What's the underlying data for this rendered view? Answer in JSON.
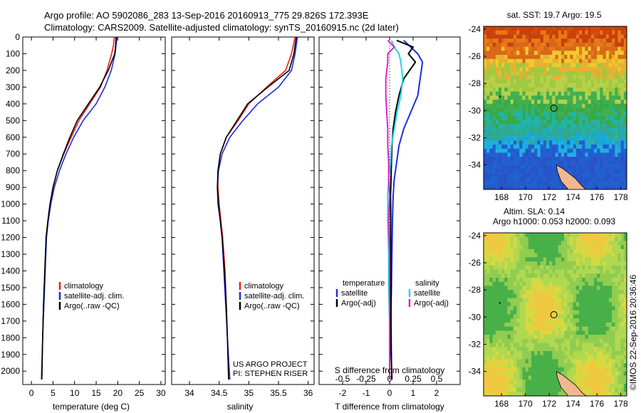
{
  "header": {
    "line1": "Argo profile: AO 5902086_283 13-Sep-2016 20160913_775 29.826S 172.393E",
    "line2": "Climatology: CARS2009. Satellite-adjusted climatology: synTS_20160915.nc (2d later)"
  },
  "colors": {
    "climatology": "#e8221a",
    "satellite": "#1a2ee0",
    "argo": "#000000",
    "salinity_satellite": "#22d8e0",
    "salinity_argo": "#e020d0",
    "island": "#f0b890"
  },
  "credit": {
    "line1": "US ARGO PROJECT",
    "line2": "PI: STEPHEN RISER"
  },
  "timestamp": "©IMOS 22-Sep-2016 20:36:46",
  "chart_data": [
    {
      "type": "line",
      "panel": "temperature",
      "xlabel": "temperature (deg C)",
      "ylabel": "",
      "xlim": [
        -2,
        31
      ],
      "ylim": [
        2080,
        0
      ],
      "xticks": [
        0,
        5,
        10,
        15,
        20,
        25,
        30
      ],
      "yticks": [
        0,
        100,
        200,
        300,
        400,
        500,
        600,
        700,
        800,
        900,
        1000,
        1100,
        1200,
        1300,
        1400,
        1500,
        1600,
        1700,
        1800,
        1900,
        2000
      ],
      "legend": [
        "climatology",
        "satellite-adj. clim.",
        "Argo(..raw -QC)"
      ],
      "legend_placement": "lower-right",
      "series": [
        {
          "name": "climatology",
          "color": "#e8221a",
          "x": [
            19.2,
            19.0,
            18.6,
            17.5,
            16.0,
            13.5,
            11.0,
            9.2,
            7.5,
            6.0,
            5.0,
            4.3,
            3.8,
            3.4,
            3.1,
            2.8,
            2.6,
            2.3
          ],
          "y": [
            0,
            50,
            100,
            200,
            300,
            400,
            500,
            600,
            700,
            800,
            900,
            1000,
            1100,
            1200,
            1400,
            1600,
            1800,
            2050
          ]
        },
        {
          "name": "satellite-adj. clim.",
          "color": "#1a2ee0",
          "x": [
            19.8,
            19.6,
            19.4,
            18.5,
            17.0,
            15.0,
            12.0,
            9.8,
            8.0,
            6.5,
            5.3,
            4.5,
            3.9,
            3.5,
            3.2,
            2.9,
            2.6,
            2.4
          ],
          "y": [
            0,
            50,
            100,
            200,
            300,
            400,
            500,
            600,
            700,
            800,
            900,
            1000,
            1100,
            1200,
            1400,
            1600,
            1800,
            2050
          ]
        },
        {
          "name": "Argo(..raw -QC)",
          "color": "#000000",
          "x": [
            19.6,
            19.5,
            19.3,
            17.8,
            15.8,
            13.2,
            10.6,
            8.9,
            7.4,
            6.0,
            5.0,
            4.3,
            3.8,
            3.4,
            3.1,
            2.8,
            2.6,
            2.4
          ],
          "y": [
            0,
            50,
            100,
            200,
            300,
            400,
            500,
            600,
            700,
            800,
            900,
            1000,
            1100,
            1200,
            1400,
            1600,
            1800,
            2050
          ]
        }
      ]
    },
    {
      "type": "line",
      "panel": "salinity",
      "xlabel": "salinity",
      "xlim": [
        33.7,
        36.1
      ],
      "ylim": [
        2080,
        0
      ],
      "xticks": [
        34,
        34.5,
        35,
        35.5,
        36
      ],
      "xticklabels": [
        "34",
        "34.5",
        "35",
        "35.5",
        "36"
      ],
      "legend": [
        "climatology",
        "satellite-adj. clim.",
        "Argo(..raw -QC)"
      ],
      "legend_placement": "lower-right",
      "series": [
        {
          "name": "climatology",
          "color": "#e8221a",
          "x": [
            35.78,
            35.75,
            35.72,
            35.62,
            35.3,
            35.0,
            34.82,
            34.62,
            34.52,
            34.48,
            34.48,
            34.5,
            34.53,
            34.56,
            34.6,
            34.62,
            34.64,
            34.66
          ],
          "y": [
            0,
            50,
            100,
            200,
            300,
            400,
            500,
            600,
            700,
            800,
            900,
            1000,
            1100,
            1200,
            1400,
            1600,
            1800,
            2050
          ]
        },
        {
          "name": "satellite-adj. clim.",
          "color": "#1a2ee0",
          "x": [
            35.82,
            35.8,
            35.78,
            35.72,
            35.5,
            35.15,
            34.9,
            34.68,
            34.55,
            34.49,
            34.47,
            34.48,
            34.52,
            34.55,
            34.58,
            34.61,
            34.64,
            34.68
          ],
          "y": [
            0,
            50,
            100,
            200,
            300,
            400,
            500,
            600,
            700,
            800,
            900,
            1000,
            1100,
            1200,
            1400,
            1600,
            1800,
            2050
          ]
        },
        {
          "name": "Argo(..raw -QC)",
          "color": "#000000",
          "x": [
            35.8,
            35.78,
            35.76,
            35.68,
            35.32,
            34.98,
            34.8,
            34.62,
            34.52,
            34.48,
            34.47,
            34.49,
            34.52,
            34.55,
            34.59,
            34.62,
            34.64,
            34.66
          ],
          "y": [
            0,
            50,
            100,
            200,
            300,
            400,
            500,
            600,
            700,
            800,
            900,
            1000,
            1100,
            1200,
            1400,
            1600,
            1800,
            2050
          ]
        }
      ]
    },
    {
      "type": "line",
      "panel": "difference",
      "xlabel": "T difference from climatology",
      "top_axis_label": "S difference from climatology",
      "xlim": [
        -3,
        3
      ],
      "s_xlim": [
        -0.75,
        0.75
      ],
      "ylim": [
        2080,
        0
      ],
      "xticks": [
        -2,
        -1,
        0,
        1,
        2
      ],
      "s_xticks": [
        -0.5,
        -0.25,
        0,
        0.25,
        0.5
      ],
      "s_xticklabels": [
        "-0.5",
        "-0.25",
        "0",
        "0.25",
        "0.5"
      ],
      "legend_temperature": {
        "title": "temperature",
        "items": [
          "satellite",
          "Argo(-adj)"
        ]
      },
      "legend_salinity": {
        "title": "salinity",
        "items": [
          "satellite",
          "Argo(-adj)"
        ]
      },
      "series": [
        {
          "name": "T satellite",
          "color": "#1a2ee0",
          "x": [
            0.6,
            0.9,
            1.2,
            1.4,
            1.3,
            1.2,
            0.9,
            0.6,
            0.4,
            0.3,
            0.2,
            0.15,
            0.12,
            0.1,
            0.08,
            0.05,
            0.03,
            0.0,
            0.0
          ],
          "y": [
            20,
            60,
            100,
            150,
            250,
            350,
            450,
            550,
            650,
            750,
            850,
            950,
            1100,
            1300,
            1500,
            1700,
            1850,
            1950,
            2050
          ]
        },
        {
          "name": "T Argo(-adj)",
          "color": "#000000",
          "x": [
            0.3,
            1.0,
            0.8,
            1.1,
            0.6,
            0.4,
            0.25,
            0.15,
            0.1,
            0.08,
            0.06,
            0.04,
            0.05,
            0.05,
            0.06,
            0.06,
            0.07,
            0.08,
            0.1
          ],
          "y": [
            20,
            60,
            100,
            150,
            250,
            350,
            450,
            550,
            650,
            750,
            850,
            950,
            1100,
            1300,
            1500,
            1700,
            1850,
            1950,
            2050
          ]
        },
        {
          "name": "S satellite",
          "color": "#22d8e0",
          "x": [
            0.02,
            0.05,
            0.1,
            0.12,
            0.14,
            0.12,
            0.08,
            0.05,
            0.02,
            0.01,
            -0.01,
            -0.02,
            -0.02,
            -0.01,
            -0.01,
            0.0,
            0.0,
            0.0,
            0.0
          ],
          "y": [
            20,
            60,
            100,
            150,
            250,
            350,
            450,
            550,
            650,
            750,
            850,
            950,
            1100,
            1300,
            1500,
            1700,
            1850,
            1950,
            2050
          ]
        },
        {
          "name": "S Argo(-adj)",
          "color": "#e020d0",
          "x": [
            -0.02,
            0.05,
            -0.02,
            -0.02,
            -0.04,
            -0.04,
            -0.03,
            -0.02,
            -0.02,
            -0.01,
            -0.01,
            0.0,
            -0.01,
            0.0,
            0.0,
            0.0,
            0.0,
            0.0,
            0.0
          ],
          "y": [
            20,
            60,
            100,
            150,
            250,
            350,
            450,
            550,
            650,
            750,
            850,
            950,
            1100,
            1300,
            1500,
            1700,
            1850,
            1950,
            2050
          ]
        }
      ]
    },
    {
      "type": "heatmap",
      "panel": "sst_map",
      "title": "sat. SST: 19.7  Argo: 19.5",
      "xticks": [
        168,
        170,
        172,
        174,
        176,
        178
      ],
      "yticks": [
        -24,
        -26,
        -28,
        -30,
        -32,
        -34
      ],
      "xlim": [
        166.5,
        178.5
      ],
      "ylim": [
        -35.8,
        -23.8
      ],
      "marker": {
        "lon": 172.393,
        "lat": -29.826
      }
    },
    {
      "type": "heatmap",
      "panel": "sla_map",
      "title_line1": "Altim. SLA: 0.14",
      "title_line2": "Argo h1000: 0.053 h2000: 0.093",
      "xticks": [
        168,
        170,
        172,
        174,
        176,
        178
      ],
      "yticks": [
        -24,
        -26,
        -28,
        -30,
        -32,
        -34
      ],
      "xlim": [
        166.5,
        178.5
      ],
      "ylim": [
        -35.8,
        -23.8
      ],
      "marker": {
        "lon": 172.393,
        "lat": -29.826
      }
    }
  ]
}
